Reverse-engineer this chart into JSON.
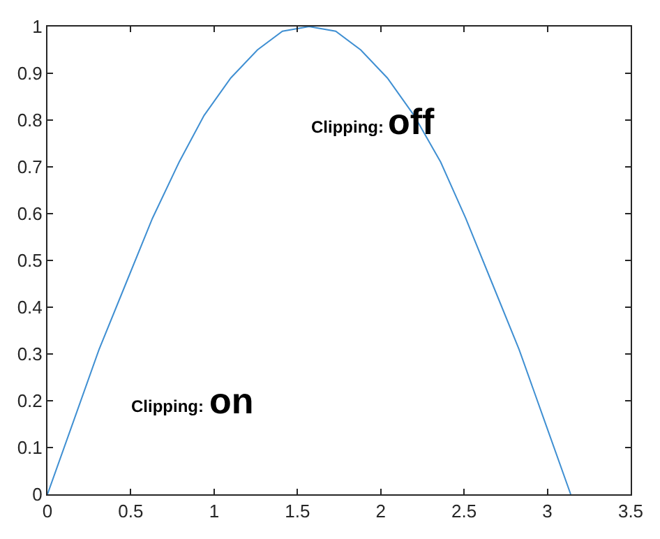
{
  "chart_data": {
    "type": "line",
    "x": [
      0,
      0.16,
      0.31,
      0.47,
      0.63,
      0.79,
      0.94,
      1.1,
      1.26,
      1.41,
      1.57,
      1.73,
      1.88,
      2.04,
      2.2,
      2.36,
      2.51,
      2.67,
      2.83,
      2.98,
      3.14
    ],
    "series": [
      {
        "color": "#3f8fd2",
        "values": [
          0,
          0.16,
          0.31,
          0.45,
          0.59,
          0.71,
          0.81,
          0.89,
          0.95,
          0.99,
          1,
          0.99,
          0.95,
          0.89,
          0.81,
          0.71,
          0.59,
          0.45,
          0.31,
          0.16,
          0
        ]
      }
    ],
    "xlim": [
      0,
      3.5
    ],
    "xticks": [
      0,
      0.5,
      1,
      1.5,
      2,
      2.5,
      3,
      3.5
    ],
    "ylim": [
      0,
      1
    ],
    "yticks": [
      0,
      0.1,
      0.2,
      0.3,
      0.4,
      0.5,
      0.6,
      0.7,
      0.8,
      0.9,
      1
    ],
    "grid": false,
    "annotations": [
      "Clipping:",
      "off",
      "Clipping:",
      "on"
    ]
  }
}
